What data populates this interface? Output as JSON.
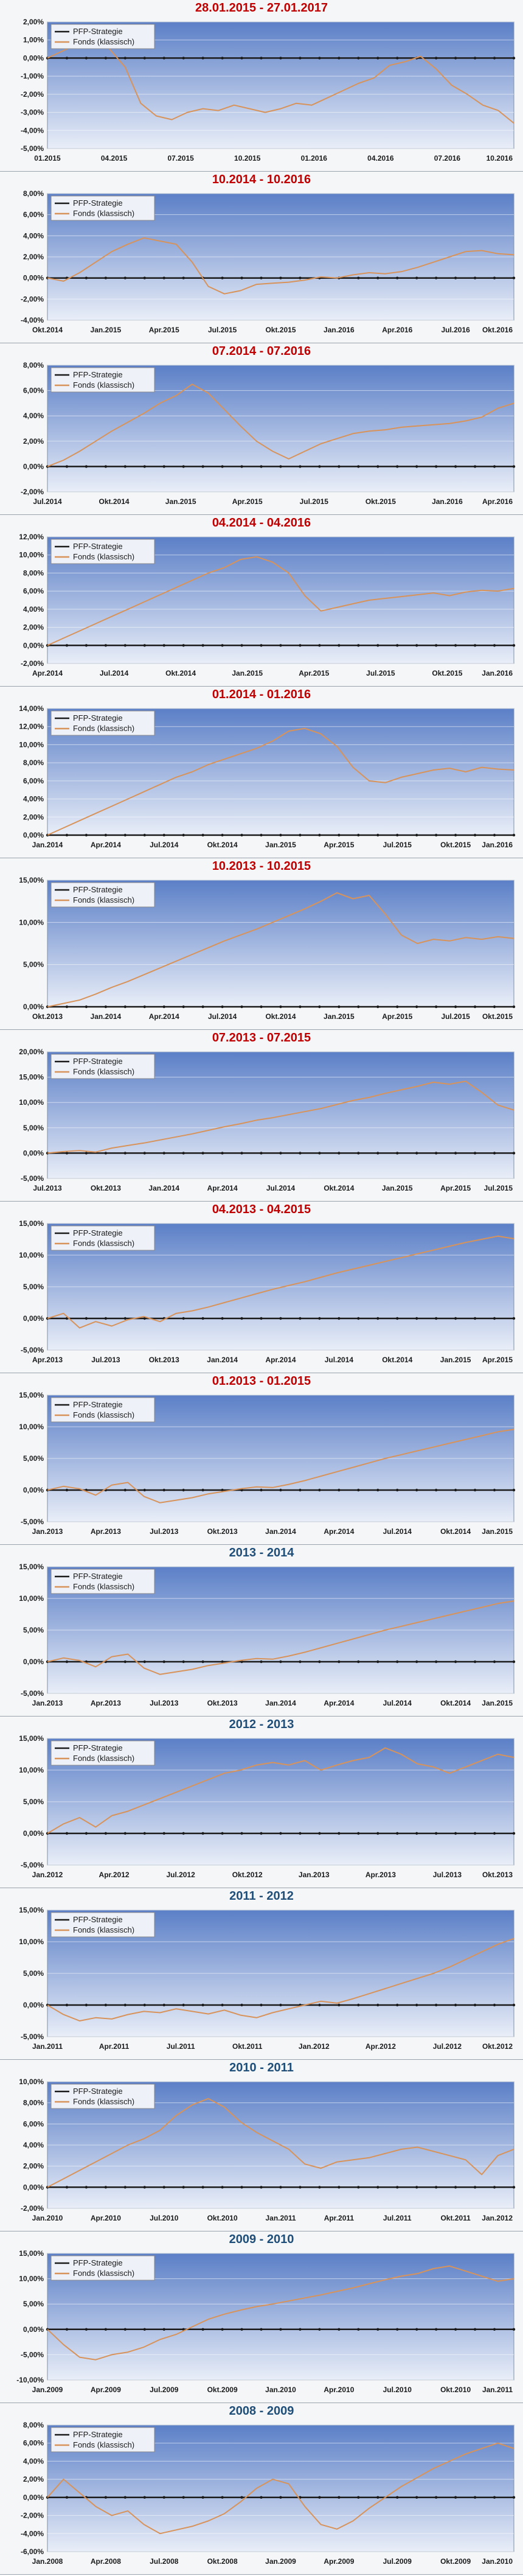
{
  "colors": {
    "title_red": "#c00000",
    "title_blue": "#1f4e79",
    "plot_top": "#5b7fc7",
    "plot_bottom": "#e9eef8",
    "pfp_line": "#1a1a1a",
    "fonds_line": "#d8935a"
  },
  "chart_data": [
    {
      "type": "line",
      "title": "28.01.2015 - 27.01.2017",
      "title_color": "red",
      "ylim": [
        -5,
        2
      ],
      "y_ticks": [
        "2,00%",
        "1,00%",
        "0,00%",
        "-1,00%",
        "-2,00%",
        "-3,00%",
        "-4,00%",
        "-5,00%"
      ],
      "x_ticks": [
        "01.2015",
        "04.2015",
        "07.2015",
        "10.2015",
        "01.2016",
        "04.2016",
        "07.2016",
        "10.2016"
      ],
      "series": [
        {
          "name": "PFP-Strategie",
          "values": [
            0,
            0
          ]
        },
        {
          "name": "Fonds (klassisch)",
          "values": [
            0,
            0.4,
            0.8,
            1.2,
            0.5,
            -0.5,
            -2.5,
            -3.2,
            -3.4,
            -3.0,
            -2.8,
            -2.9,
            -2.6,
            -2.8,
            -3.0,
            -2.8,
            -2.5,
            -2.6,
            -2.2,
            -1.8,
            -1.4,
            -1.1,
            -0.4,
            -0.2,
            0.1,
            -0.6,
            -1.5,
            -2.0,
            -2.6,
            -2.9,
            -3.6
          ]
        }
      ],
      "grid": true,
      "legend": "top-left"
    },
    {
      "type": "line",
      "title": "10.2014 - 10.2016",
      "title_color": "red",
      "ylim": [
        -4,
        8
      ],
      "y_ticks": [
        "8,00%",
        "6,00%",
        "4,00%",
        "2,00%",
        "0,00%",
        "-2,00%",
        "-4,00%"
      ],
      "x_ticks": [
        "Okt.2014",
        "Jan.2015",
        "Apr.2015",
        "Jul.2015",
        "Okt.2015",
        "Jan.2016",
        "Apr.2016",
        "Jul.2016",
        "Okt.2016"
      ],
      "series": [
        {
          "name": "PFP-Strategie",
          "values": [
            0,
            0
          ]
        },
        {
          "name": "Fonds (klassisch)",
          "values": [
            0,
            -0.3,
            0.5,
            1.5,
            2.5,
            3.2,
            3.8,
            3.5,
            3.2,
            1.5,
            -0.8,
            -1.5,
            -1.2,
            -0.6,
            -0.5,
            -0.4,
            -0.2,
            0.1,
            0.0,
            0.3,
            0.5,
            0.4,
            0.6,
            1.0,
            1.5,
            2.0,
            2.5,
            2.6,
            2.3,
            2.2
          ]
        }
      ],
      "grid": true,
      "legend": "top-left"
    },
    {
      "type": "line",
      "title": "07.2014 - 07.2016",
      "title_color": "red",
      "ylim": [
        -2,
        8
      ],
      "y_ticks": [
        "8,00%",
        "6,00%",
        "4,00%",
        "2,00%",
        "0,00%",
        "-2,00%"
      ],
      "x_ticks": [
        "Jul.2014",
        "Okt.2014",
        "Jan.2015",
        "Apr.2015",
        "Jul.2015",
        "Okt.2015",
        "Jan.2016",
        "Apr.2016"
      ],
      "series": [
        {
          "name": "PFP-Strategie",
          "values": [
            0,
            0
          ]
        },
        {
          "name": "Fonds (klassisch)",
          "values": [
            0,
            0.5,
            1.2,
            2.0,
            2.8,
            3.5,
            4.2,
            5.0,
            5.6,
            6.5,
            5.8,
            4.5,
            3.2,
            2.0,
            1.2,
            0.6,
            1.2,
            1.8,
            2.2,
            2.6,
            2.8,
            2.9,
            3.1,
            3.2,
            3.3,
            3.4,
            3.6,
            3.9,
            4.6,
            5.0
          ]
        }
      ],
      "grid": true,
      "legend": "top-left"
    },
    {
      "type": "line",
      "title": "04.2014 - 04.2016",
      "title_color": "red",
      "ylim": [
        -2,
        12
      ],
      "y_ticks": [
        "12,00%",
        "10,00%",
        "8,00%",
        "6,00%",
        "4,00%",
        "2,00%",
        "0,00%",
        "-2,00%"
      ],
      "x_ticks": [
        "Apr.2014",
        "Jul.2014",
        "Okt.2014",
        "Jan.2015",
        "Apr.2015",
        "Jul.2015",
        "Okt.2015",
        "Jan.2016"
      ],
      "series": [
        {
          "name": "PFP-Strategie",
          "values": [
            0,
            0
          ]
        },
        {
          "name": "Fonds (klassisch)",
          "values": [
            0,
            0.8,
            1.6,
            2.4,
            3.2,
            4.0,
            4.8,
            5.6,
            6.4,
            7.2,
            8.0,
            8.6,
            9.5,
            9.8,
            9.2,
            8.0,
            5.5,
            3.8,
            4.2,
            4.6,
            5.0,
            5.2,
            5.4,
            5.6,
            5.8,
            5.5,
            5.9,
            6.1,
            6.0,
            6.3
          ]
        }
      ],
      "grid": true,
      "legend": "top-left"
    },
    {
      "type": "line",
      "title": "01.2014 - 01.2016",
      "title_color": "red",
      "ylim": [
        0,
        14
      ],
      "y_ticks": [
        "14,00%",
        "12,00%",
        "10,00%",
        "8,00%",
        "6,00%",
        "4,00%",
        "2,00%",
        "0,00%"
      ],
      "x_ticks": [
        "Jan.2014",
        "Apr.2014",
        "Jul.2014",
        "Okt.2014",
        "Jan.2015",
        "Apr.2015",
        "Jul.2015",
        "Okt.2015",
        "Jan.2016"
      ],
      "series": [
        {
          "name": "PFP-Strategie",
          "values": [
            0,
            0
          ]
        },
        {
          "name": "Fonds (klassisch)",
          "values": [
            0,
            0.8,
            1.6,
            2.4,
            3.2,
            4.0,
            4.8,
            5.6,
            6.4,
            7.0,
            7.8,
            8.4,
            9.0,
            9.6,
            10.4,
            11.5,
            11.8,
            11.2,
            9.8,
            7.5,
            6.0,
            5.8,
            6.4,
            6.8,
            7.2,
            7.4,
            7.0,
            7.5,
            7.3,
            7.2
          ]
        }
      ],
      "grid": true,
      "legend": "top-left"
    },
    {
      "type": "line",
      "title": "10.2013 - 10.2015",
      "title_color": "red",
      "ylim": [
        0,
        15
      ],
      "y_ticks": [
        "15,00%",
        "10,00%",
        "5,00%",
        "0,00%"
      ],
      "x_ticks": [
        "Okt.2013",
        "Jan.2014",
        "Apr.2014",
        "Jul.2014",
        "Okt.2014",
        "Jan.2015",
        "Apr.2015",
        "Jul.2015",
        "Okt.2015"
      ],
      "series": [
        {
          "name": "PFP-Strategie",
          "values": [
            0,
            0
          ]
        },
        {
          "name": "Fonds (klassisch)",
          "values": [
            0,
            0.4,
            0.8,
            1.5,
            2.3,
            3.0,
            3.8,
            4.6,
            5.4,
            6.2,
            7.0,
            7.8,
            8.5,
            9.2,
            10.0,
            10.8,
            11.6,
            12.5,
            13.5,
            12.8,
            13.2,
            11.0,
            8.5,
            7.5,
            8.0,
            7.8,
            8.2,
            8.0,
            8.3,
            8.1
          ]
        }
      ],
      "grid": true,
      "legend": "top-left"
    },
    {
      "type": "line",
      "title": "07.2013 - 07.2015",
      "title_color": "red",
      "ylim": [
        -5,
        20
      ],
      "y_ticks": [
        "20,00%",
        "15,00%",
        "10,00%",
        "5,00%",
        "0,00%",
        "-5,00%"
      ],
      "x_ticks": [
        "Jul.2013",
        "Okt.2013",
        "Jan.2014",
        "Apr.2014",
        "Jul.2014",
        "Okt.2014",
        "Jan.2015",
        "Apr.2015",
        "Jul.2015"
      ],
      "series": [
        {
          "name": "PFP-Strategie",
          "values": [
            0,
            0
          ]
        },
        {
          "name": "Fonds (klassisch)",
          "values": [
            0,
            0.3,
            0.5,
            0.2,
            1.0,
            1.5,
            2.0,
            2.6,
            3.2,
            3.8,
            4.5,
            5.2,
            5.8,
            6.5,
            7.0,
            7.6,
            8.2,
            8.8,
            9.6,
            10.4,
            11.0,
            11.8,
            12.5,
            13.2,
            14.0,
            13.6,
            14.2,
            12.0,
            9.5,
            8.5
          ]
        }
      ],
      "grid": true,
      "legend": "top-left"
    },
    {
      "type": "line",
      "title": "04.2013 - 04.2015",
      "title_color": "red",
      "ylim": [
        -5,
        15
      ],
      "y_ticks": [
        "15,00%",
        "10,00%",
        "5,00%",
        "0,00%",
        "-5,00%"
      ],
      "x_ticks": [
        "Apr.2013",
        "Jul.2013",
        "Okt.2013",
        "Jan.2014",
        "Apr.2014",
        "Jul.2014",
        "Okt.2014",
        "Jan.2015",
        "Apr.2015"
      ],
      "series": [
        {
          "name": "PFP-Strategie",
          "values": [
            0,
            0
          ]
        },
        {
          "name": "Fonds (klassisch)",
          "values": [
            0,
            0.8,
            -1.5,
            -0.5,
            -1.2,
            -0.2,
            0.3,
            -0.5,
            0.8,
            1.2,
            1.8,
            2.5,
            3.2,
            3.9,
            4.6,
            5.2,
            5.8,
            6.5,
            7.2,
            7.8,
            8.4,
            9.0,
            9.6,
            10.2,
            10.8,
            11.4,
            12.0,
            12.5,
            13.0,
            12.6
          ]
        }
      ],
      "grid": true,
      "legend": "top-left"
    },
    {
      "type": "line",
      "title": "01.2013 - 01.2015",
      "title_color": "red",
      "ylim": [
        -5,
        15
      ],
      "y_ticks": [
        "15,00%",
        "10,00%",
        "5,00%",
        "0,00%",
        "-5,00%"
      ],
      "x_ticks": [
        "Jan.2013",
        "Apr.2013",
        "Jul.2013",
        "Okt.2013",
        "Jan.2014",
        "Apr.2014",
        "Jul.2014",
        "Okt.2014",
        "Jan.2015"
      ],
      "series": [
        {
          "name": "PFP-Strategie",
          "values": [
            0,
            0
          ]
        },
        {
          "name": "Fonds (klassisch)",
          "values": [
            0,
            0.6,
            0.2,
            -0.8,
            0.8,
            1.2,
            -1.0,
            -2.0,
            -1.6,
            -1.2,
            -0.6,
            -0.2,
            0.2,
            0.5,
            0.4,
            0.9,
            1.5,
            2.2,
            2.9,
            3.6,
            4.3,
            5.0,
            5.6,
            6.2,
            6.8,
            7.4,
            8.0,
            8.6,
            9.2,
            9.6
          ]
        }
      ],
      "grid": true,
      "legend": "top-left"
    },
    {
      "type": "line",
      "title": "2013 - 2014",
      "title_color": "blue",
      "ylim": [
        -5,
        15
      ],
      "y_ticks": [
        "15,00%",
        "10,00%",
        "5,00%",
        "0,00%",
        "-5,00%"
      ],
      "x_ticks": [
        "Jan.2013",
        "Apr.2013",
        "Jul.2013",
        "Okt.2013",
        "Jan.2014",
        "Apr.2014",
        "Jul.2014",
        "Okt.2014",
        "Jan.2015"
      ],
      "series": [
        {
          "name": "PFP-Strategie",
          "values": [
            0,
            0
          ]
        },
        {
          "name": "Fonds (klassisch)",
          "values": [
            0,
            0.6,
            0.2,
            -0.8,
            0.8,
            1.2,
            -1.0,
            -2.0,
            -1.6,
            -1.2,
            -0.6,
            -0.2,
            0.2,
            0.5,
            0.4,
            0.9,
            1.5,
            2.2,
            2.9,
            3.6,
            4.3,
            5.0,
            5.6,
            6.2,
            6.8,
            7.4,
            8.0,
            8.6,
            9.2,
            9.6
          ]
        }
      ],
      "grid": true,
      "legend": "top-left"
    },
    {
      "type": "line",
      "title": "2012 - 2013",
      "title_color": "blue",
      "ylim": [
        -5,
        15
      ],
      "y_ticks": [
        "15,00%",
        "10,00%",
        "5,00%",
        "0,00%",
        "-5,00%"
      ],
      "x_ticks": [
        "Jan.2012",
        "Apr.2012",
        "Jul.2012",
        "Okt.2012",
        "Jan.2013",
        "Apr.2013",
        "Jul.2013",
        "Okt.2013"
      ],
      "series": [
        {
          "name": "PFP-Strategie",
          "values": [
            0,
            0
          ]
        },
        {
          "name": "Fonds (klassisch)",
          "values": [
            0,
            1.5,
            2.5,
            1.0,
            2.8,
            3.5,
            4.5,
            5.5,
            6.5,
            7.5,
            8.5,
            9.5,
            10.0,
            10.8,
            11.2,
            10.8,
            11.5,
            10.0,
            10.8,
            11.5,
            12.0,
            13.5,
            12.5,
            11.0,
            10.5,
            9.5,
            10.5,
            11.5,
            12.5,
            12.0
          ]
        }
      ],
      "grid": true,
      "legend": "top-left"
    },
    {
      "type": "line",
      "title": "2011 - 2012",
      "title_color": "blue",
      "ylim": [
        -5,
        15
      ],
      "y_ticks": [
        "15,00%",
        "10,00%",
        "5,00%",
        "0,00%",
        "-5,00%"
      ],
      "x_ticks": [
        "Jan.2011",
        "Apr.2011",
        "Jul.2011",
        "Okt.2011",
        "Jan.2012",
        "Apr.2012",
        "Jul.2012",
        "Okt.2012"
      ],
      "series": [
        {
          "name": "PFP-Strategie",
          "values": [
            0,
            0
          ]
        },
        {
          "name": "Fonds (klassisch)",
          "values": [
            0,
            -1.5,
            -2.5,
            -2.0,
            -2.2,
            -1.5,
            -1.0,
            -1.2,
            -0.6,
            -1.0,
            -1.4,
            -0.8,
            -1.6,
            -2.0,
            -1.2,
            -0.6,
            0.0,
            0.6,
            0.3,
            1.0,
            1.8,
            2.6,
            3.4,
            4.2,
            5.0,
            6.0,
            7.2,
            8.4,
            9.6,
            10.5
          ]
        }
      ],
      "grid": true,
      "legend": "top-left"
    },
    {
      "type": "line",
      "title": "2010 - 2011",
      "title_color": "blue",
      "ylim": [
        -2,
        10
      ],
      "y_ticks": [
        "10,00%",
        "8,00%",
        "6,00%",
        "4,00%",
        "2,00%",
        "0,00%",
        "-2,00%"
      ],
      "x_ticks": [
        "Jan.2010",
        "Apr.2010",
        "Jul.2010",
        "Okt.2010",
        "Jan.2011",
        "Apr.2011",
        "Jul.2011",
        "Okt.2011",
        "Jan.2012"
      ],
      "series": [
        {
          "name": "PFP-Strategie",
          "values": [
            0,
            0
          ]
        },
        {
          "name": "Fonds (klassisch)",
          "values": [
            0,
            0.8,
            1.6,
            2.4,
            3.2,
            4.0,
            4.6,
            5.4,
            6.8,
            7.8,
            8.4,
            7.6,
            6.2,
            5.2,
            4.4,
            3.6,
            2.2,
            1.8,
            2.4,
            2.6,
            2.8,
            3.2,
            3.6,
            3.8,
            3.4,
            3.0,
            2.6,
            1.2,
            3.0,
            3.6
          ]
        }
      ],
      "grid": true,
      "legend": "top-left"
    },
    {
      "type": "line",
      "title": "2009 - 2010",
      "title_color": "blue",
      "ylim": [
        -10,
        15
      ],
      "y_ticks": [
        "15,00%",
        "10,00%",
        "5,00%",
        "0,00%",
        "-5,00%",
        "-10,00%"
      ],
      "x_ticks": [
        "Jan.2009",
        "Apr.2009",
        "Jul.2009",
        "Okt.2009",
        "Jan.2010",
        "Apr.2010",
        "Jul.2010",
        "Okt.2010",
        "Jan.2011"
      ],
      "series": [
        {
          "name": "PFP-Strategie",
          "values": [
            0,
            0
          ]
        },
        {
          "name": "Fonds (klassisch)",
          "values": [
            0,
            -3.0,
            -5.5,
            -6.0,
            -5.0,
            -4.5,
            -3.5,
            -2.0,
            -1.0,
            0.5,
            2.0,
            3.0,
            3.8,
            4.5,
            5.0,
            5.6,
            6.2,
            6.8,
            7.5,
            8.2,
            9.0,
            9.8,
            10.5,
            11.0,
            12.0,
            12.5,
            11.5,
            10.5,
            9.5,
            10.0
          ]
        }
      ],
      "grid": true,
      "legend": "top-left"
    },
    {
      "type": "line",
      "title": "2008 - 2009",
      "title_color": "blue",
      "ylim": [
        -6,
        8
      ],
      "y_ticks": [
        "8,00%",
        "6,00%",
        "4,00%",
        "2,00%",
        "0,00%",
        "-2,00%",
        "-4,00%",
        "-6,00%"
      ],
      "x_ticks": [
        "Jan.2008",
        "Apr.2008",
        "Jul.2008",
        "Okt.2008",
        "Jan.2009",
        "Apr.2009",
        "Jul.2009",
        "Okt.2009",
        "Jan.2010"
      ],
      "series": [
        {
          "name": "PFP-Strategie",
          "values": [
            0,
            0
          ]
        },
        {
          "name": "Fonds (klassisch)",
          "values": [
            0,
            2.0,
            0.5,
            -1.0,
            -2.0,
            -1.5,
            -3.0,
            -4.0,
            -3.6,
            -3.2,
            -2.6,
            -1.8,
            -0.5,
            1.0,
            2.0,
            1.5,
            -1.0,
            -3.0,
            -3.5,
            -2.6,
            -1.2,
            0.0,
            1.2,
            2.2,
            3.2,
            4.0,
            4.8,
            5.4,
            6.0,
            5.4
          ]
        }
      ],
      "grid": true,
      "legend": "top-left"
    }
  ]
}
